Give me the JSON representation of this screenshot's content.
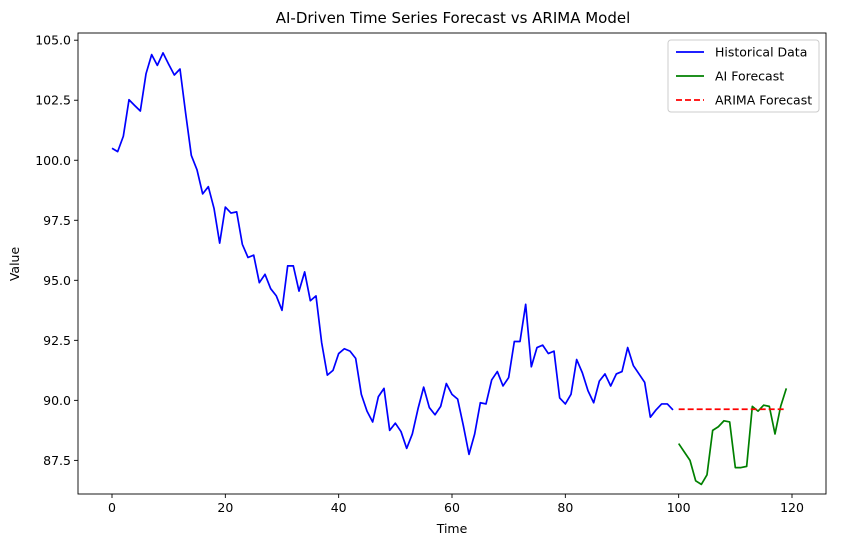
{
  "chart_data": {
    "type": "line",
    "title": "AI-Driven Time Series Forecast vs ARIMA Model",
    "xlabel": "Time",
    "ylabel": "Value",
    "xlim": [
      -6,
      126
    ],
    "ylim": [
      86.1,
      105.3
    ],
    "xticks": [
      0,
      20,
      40,
      60,
      80,
      100,
      120
    ],
    "xtick_labels": [
      "0",
      "20",
      "40",
      "60",
      "80",
      "100",
      "120"
    ],
    "yticks": [
      87.5,
      90.0,
      92.5,
      95.0,
      97.5,
      100.0,
      102.5,
      105.0
    ],
    "ytick_labels": [
      "87.5",
      "90.0",
      "92.5",
      "95.0",
      "97.5",
      "100.0",
      "102.5",
      "105.0"
    ],
    "grid": false,
    "legend_position": "top-right",
    "series": [
      {
        "name": "Historical Data",
        "color": "#0000ff",
        "style": "solid",
        "x": [
          0,
          1,
          2,
          3,
          4,
          5,
          6,
          7,
          8,
          9,
          10,
          11,
          12,
          13,
          14,
          15,
          16,
          17,
          18,
          19,
          20,
          21,
          22,
          23,
          24,
          25,
          26,
          27,
          28,
          29,
          30,
          31,
          32,
          33,
          34,
          35,
          36,
          37,
          38,
          39,
          40,
          41,
          42,
          43,
          44,
          45,
          46,
          47,
          48,
          49,
          50,
          51,
          52,
          53,
          54,
          55,
          56,
          57,
          58,
          59,
          60,
          61,
          62,
          63,
          64,
          65,
          66,
          67,
          68,
          69,
          70,
          71,
          72,
          73,
          74,
          75,
          76,
          77,
          78,
          79,
          80,
          81,
          82,
          83,
          84,
          85,
          86,
          87,
          88,
          89,
          90,
          91,
          92,
          93,
          94,
          95,
          96,
          97,
          98,
          99
        ],
        "y": [
          100.5,
          100.36,
          101.0,
          102.52,
          102.28,
          102.05,
          103.6,
          104.4,
          103.95,
          104.47,
          104.0,
          103.55,
          103.8,
          101.95,
          100.2,
          99.6,
          98.6,
          98.9,
          98.0,
          96.55,
          98.05,
          97.8,
          97.85,
          96.5,
          95.95,
          96.05,
          94.9,
          95.25,
          94.65,
          94.35,
          93.75,
          95.6,
          95.6,
          94.55,
          95.35,
          94.15,
          94.35,
          92.4,
          91.05,
          91.25,
          91.95,
          92.15,
          92.05,
          91.75,
          90.25,
          89.55,
          89.1,
          90.15,
          90.5,
          88.75,
          89.05,
          88.7,
          88.0,
          88.6,
          89.65,
          90.55,
          89.7,
          89.4,
          89.75,
          90.7,
          90.25,
          90.05,
          88.95,
          87.75,
          88.6,
          89.9,
          89.85,
          90.85,
          91.2,
          90.6,
          90.95,
          92.45,
          92.45,
          94.0,
          91.4,
          92.2,
          92.3,
          91.95,
          92.05,
          90.1,
          89.85,
          90.25,
          91.7,
          91.15,
          90.4,
          89.9,
          90.8,
          91.1,
          90.6,
          91.1,
          91.2,
          92.2,
          91.45,
          91.1,
          90.75,
          89.3,
          89.6,
          89.85,
          89.85,
          89.6
        ]
      },
      {
        "name": "AI Forecast",
        "color": "#008000",
        "style": "solid",
        "x": [
          100,
          101,
          102,
          103,
          104,
          105,
          106,
          107,
          108,
          109,
          110,
          111,
          112,
          113,
          114,
          115,
          116,
          117,
          118,
          119
        ],
        "y": [
          88.2,
          87.85,
          87.5,
          86.65,
          86.5,
          86.9,
          88.75,
          88.9,
          89.15,
          89.1,
          87.2,
          87.2,
          87.25,
          89.75,
          89.55,
          89.8,
          89.75,
          88.6,
          89.75,
          90.5
        ]
      },
      {
        "name": "ARIMA Forecast",
        "color": "#ff0000",
        "style": "dashed",
        "x": [
          100,
          101,
          102,
          103,
          104,
          105,
          106,
          107,
          108,
          109,
          110,
          111,
          112,
          113,
          114,
          115,
          116,
          117,
          118,
          119
        ],
        "y": [
          89.63,
          89.63,
          89.63,
          89.63,
          89.63,
          89.63,
          89.63,
          89.63,
          89.63,
          89.63,
          89.63,
          89.63,
          89.63,
          89.63,
          89.63,
          89.63,
          89.63,
          89.63,
          89.63,
          89.63
        ]
      }
    ]
  }
}
